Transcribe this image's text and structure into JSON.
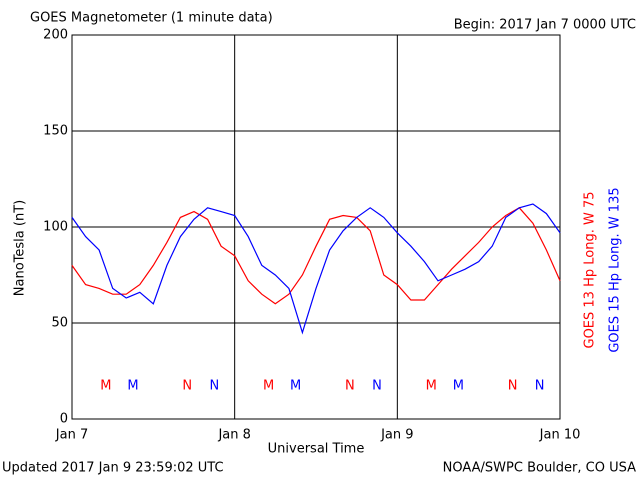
{
  "chart_data": {
    "type": "line",
    "title": "GOES Magnetometer (1 minute data)",
    "subtitle": "Begin:  2017 Jan 7 0000 UTC",
    "ylabel": "NanoTesla (nT)",
    "xlabel": "Universal Time",
    "footer_left": "Updated 2017 Jan  9 23:59:02 UTC",
    "footer_right": "NOAA/SWPC Boulder, CO USA",
    "grid": true,
    "xlim": [
      0,
      72
    ],
    "xticks": [
      {
        "value": 0,
        "label": "Jan 7"
      },
      {
        "value": 24,
        "label": "Jan 8"
      },
      {
        "value": 48,
        "label": "Jan 9"
      },
      {
        "value": 72,
        "label": "Jan 10"
      }
    ],
    "ylim": [
      0,
      200
    ],
    "yticks": [
      0,
      50,
      100,
      150,
      200
    ],
    "x": [
      0,
      2,
      4,
      6,
      8,
      10,
      12,
      14,
      16,
      18,
      20,
      22,
      24,
      26,
      28,
      30,
      32,
      34,
      36,
      38,
      40,
      42,
      44,
      46,
      48,
      50,
      52,
      54,
      56,
      58,
      60,
      62,
      64,
      66,
      68,
      70,
      72
    ],
    "series": [
      {
        "name": "GOES 13 Hp  Long. W 75",
        "color": "#ff0000",
        "values": [
          80,
          70,
          68,
          65,
          65,
          70,
          80,
          92,
          105,
          108,
          104,
          90,
          85,
          72,
          65,
          60,
          65,
          75,
          90,
          104,
          106,
          105,
          98,
          75,
          70,
          62,
          62,
          70,
          78,
          85,
          92,
          100,
          106,
          110,
          102,
          88,
          72
        ]
      },
      {
        "name": "GOES 15 Hp  Long. W 135",
        "color": "#0000ff",
        "values": [
          105,
          95,
          88,
          68,
          63,
          66,
          60,
          80,
          95,
          104,
          110,
          108,
          106,
          95,
          80,
          75,
          68,
          45,
          68,
          88,
          98,
          105,
          110,
          105,
          97,
          90,
          82,
          72,
          75,
          78,
          82,
          90,
          105,
          110,
          112,
          107,
          97
        ]
      }
    ],
    "markers": [
      {
        "label": "M",
        "x": 5,
        "series": 0
      },
      {
        "label": "M",
        "x": 9,
        "series": 1
      },
      {
        "label": "N",
        "x": 17,
        "series": 0
      },
      {
        "label": "N",
        "x": 21,
        "series": 1
      },
      {
        "label": "M",
        "x": 29,
        "series": 0
      },
      {
        "label": "M",
        "x": 33,
        "series": 1
      },
      {
        "label": "N",
        "x": 41,
        "series": 0
      },
      {
        "label": "N",
        "x": 45,
        "series": 1
      },
      {
        "label": "M",
        "x": 53,
        "series": 0
      },
      {
        "label": "M",
        "x": 57,
        "series": 1
      },
      {
        "label": "N",
        "x": 65,
        "series": 0
      },
      {
        "label": "N",
        "x": 69,
        "series": 1
      }
    ]
  }
}
